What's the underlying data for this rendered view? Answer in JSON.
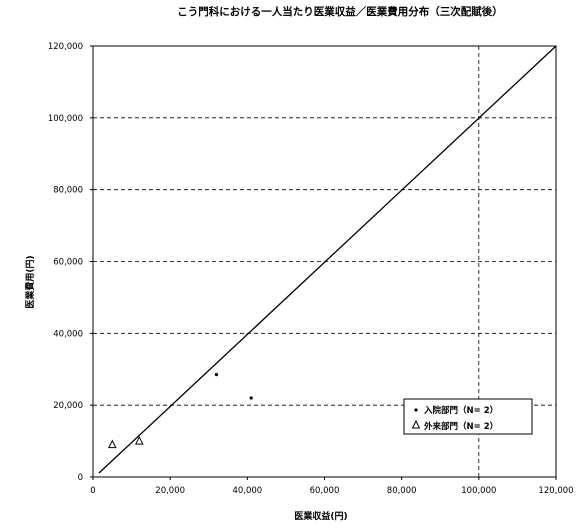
{
  "chart_data": {
    "type": "scatter",
    "title": "こう門科における一人当たり医業収益／医業費用分布（三次配賦後）",
    "xlabel": "医業収益(円)",
    "ylabel": "医業費用(円)",
    "xlim": [
      0,
      120000
    ],
    "ylim": [
      0,
      120000
    ],
    "xticks": [
      0,
      20000,
      40000,
      60000,
      80000,
      100000,
      120000
    ],
    "yticks": [
      0,
      20000,
      40000,
      60000,
      80000,
      100000,
      120000
    ],
    "xtick_labels": [
      "0",
      "20,000",
      "40,000",
      "60,000",
      "80,000",
      "100,000",
      "120,000"
    ],
    "ytick_labels": [
      "0",
      "20,000",
      "40,000",
      "60,000",
      "80,000",
      "100,000",
      "120,000"
    ],
    "grid": "dashed horizontal lines at y ticks; dashed vertical line at x=100,000",
    "reference_line": {
      "type": "y=x",
      "from": [
        0,
        0
      ],
      "to": [
        120000,
        120000
      ]
    },
    "legend_position": "bottom-right",
    "series": [
      {
        "name": "入院部門（N= 2）",
        "marker": "dot",
        "points": [
          [
            32000,
            28500
          ],
          [
            41000,
            22000
          ]
        ]
      },
      {
        "name": "外来部門（N= 2）",
        "marker": "triangle",
        "points": [
          [
            5000,
            9000
          ],
          [
            12000,
            10000
          ]
        ]
      }
    ]
  }
}
